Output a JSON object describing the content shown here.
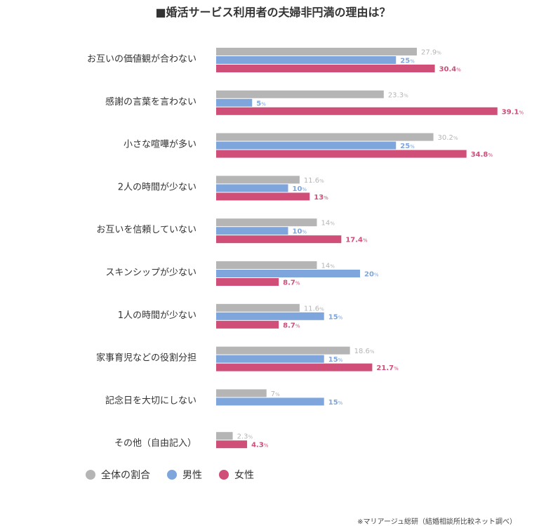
{
  "title": "■婚活サービス利用者の夫婦非円満の理由は？",
  "source": "※マリアージュ総研（結婚相談所比較ネット調べ）",
  "colors": {
    "total": "#b5b5b5",
    "male": "#7ea6dc",
    "female": "#cf4f78"
  },
  "chart_data": {
    "type": "bar",
    "orientation": "horizontal",
    "value_suffix": "%",
    "categories": [
      "お互いの価値観が合わない",
      "感謝の言葉を言わない",
      "小さな喧嘩が多い",
      "2人の時間が少ない",
      "お互いを信頼していない",
      "スキンシップが少ない",
      "1人の時間が少ない",
      "家事育児などの役割分担",
      "記念日を大切にしない",
      "その他（自由記入）"
    ],
    "series": [
      {
        "name": "全体の割合",
        "color": "#b5b5b5",
        "values": [
          27.9,
          23.3,
          30.2,
          11.6,
          14,
          14,
          11.6,
          18.6,
          7,
          2.3
        ],
        "labels": [
          "27.9",
          "23.3",
          "30.2",
          "11.6",
          "14",
          "14",
          "11.6",
          "18.6",
          "7",
          "2.3"
        ]
      },
      {
        "name": "男性",
        "color": "#7ea6dc",
        "values": [
          25,
          5,
          25,
          10,
          10,
          20,
          15,
          15,
          15,
          null
        ],
        "labels": [
          "25",
          "5",
          "25",
          "10",
          "10",
          "20",
          "15",
          "15",
          "15",
          null
        ]
      },
      {
        "name": "女性",
        "color": "#cf4f78",
        "values": [
          30.4,
          39.1,
          34.8,
          13,
          17.4,
          8.7,
          8.7,
          21.7,
          null,
          4.3
        ],
        "labels": [
          "30.4",
          "39.1",
          "34.8",
          "13",
          "17.4",
          "8.7",
          "8.7",
          "21.7",
          null,
          "4.3"
        ]
      }
    ]
  }
}
